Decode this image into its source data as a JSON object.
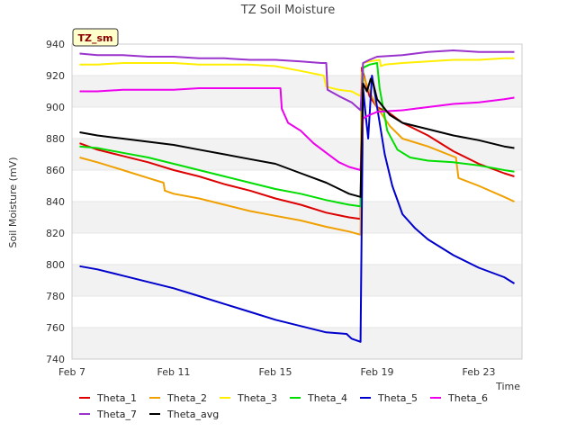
{
  "chart_data": {
    "type": "line",
    "title": "TZ Soil Moisture",
    "xlabel": "Time",
    "ylabel": "Soil Moisture (mV)",
    "badge": "TZ_sm",
    "xlim": [
      7,
      24.7
    ],
    "ylim": [
      740,
      940
    ],
    "xticks": [
      {
        "value": 7,
        "label": "Feb 7"
      },
      {
        "value": 11,
        "label": "Feb 11"
      },
      {
        "value": 15,
        "label": "Feb 15"
      },
      {
        "value": 19,
        "label": "Feb 19"
      },
      {
        "value": 23,
        "label": "Feb 23"
      }
    ],
    "yticks": [
      740,
      760,
      780,
      800,
      820,
      840,
      860,
      880,
      900,
      920,
      940
    ],
    "grid": true,
    "legend_position": "bottom",
    "series": [
      {
        "name": "Theta_1",
        "color": "#dd0000",
        "x": [
          7.3,
          8,
          9,
          10,
          11,
          12,
          13,
          14,
          15,
          16,
          17,
          17.9,
          18.35,
          18.4,
          18.7,
          19,
          19.5,
          20,
          21,
          22,
          23,
          24,
          24.4
        ],
        "y": [
          877,
          873,
          869,
          865,
          860,
          856,
          851,
          847,
          842,
          838,
          833,
          830,
          829,
          925,
          907,
          900,
          896,
          890,
          882,
          872,
          864,
          858,
          856
        ]
      },
      {
        "name": "Theta_2",
        "color": "#f0a000",
        "x": [
          7.3,
          8,
          9,
          10,
          10.6,
          10.65,
          11,
          12,
          13,
          14,
          15,
          16,
          17,
          17.9,
          18.35,
          18.4,
          18.7,
          19,
          19.5,
          20,
          21,
          22.1,
          22.2,
          23,
          24,
          24.4
        ],
        "y": [
          868,
          865,
          860,
          855,
          852,
          847,
          845,
          842,
          838,
          834,
          831,
          828,
          824,
          821,
          819,
          922,
          910,
          900,
          888,
          880,
          875,
          868,
          855,
          850,
          843,
          840
        ]
      },
      {
        "name": "Theta_3",
        "color": "#ffee00",
        "x": [
          7.3,
          8,
          9,
          10,
          11,
          12,
          13,
          14,
          15,
          16,
          16.9,
          17,
          17.5,
          18,
          18.35,
          18.45,
          18.7,
          19.1,
          19.15,
          19.3,
          20,
          21,
          22,
          23,
          24,
          24.4
        ],
        "y": [
          927,
          927,
          928,
          928,
          928,
          927,
          927,
          927,
          926,
          923,
          920,
          913,
          911,
          910,
          907,
          928,
          929,
          930,
          926,
          927,
          928,
          929,
          930,
          930,
          931,
          931
        ]
      },
      {
        "name": "Theta_4",
        "color": "#00dd00",
        "x": [
          7.3,
          8,
          9,
          10,
          11,
          12,
          13,
          14,
          15,
          16,
          17,
          17.9,
          18.35,
          18.45,
          18.7,
          19,
          19.1,
          19.4,
          19.8,
          20.3,
          21,
          22,
          23,
          24,
          24.4
        ],
        "y": [
          875,
          874,
          871,
          868,
          864,
          860,
          856,
          852,
          848,
          845,
          841,
          838,
          837,
          925,
          927,
          928,
          912,
          885,
          873,
          868,
          866,
          865,
          863,
          860,
          859
        ]
      },
      {
        "name": "Theta_5",
        "color": "#0000cc",
        "x": [
          7.3,
          8,
          9,
          10,
          11,
          12,
          13,
          14,
          15,
          16,
          17,
          17.8,
          18.0,
          18.35,
          18.45,
          18.55,
          18.65,
          18.8,
          18.9,
          19.0,
          19.3,
          19.6,
          20,
          20.5,
          21,
          22,
          23,
          24,
          24.4
        ],
        "y": [
          799,
          797,
          793,
          789,
          785,
          780,
          775,
          770,
          765,
          761,
          757,
          756,
          753,
          751,
          912,
          895,
          880,
          920,
          910,
          900,
          870,
          850,
          832,
          823,
          816,
          806,
          798,
          792,
          788
        ]
      },
      {
        "name": "Theta_6",
        "color": "#ee00ee",
        "x": [
          7.3,
          8,
          9,
          10,
          11,
          12,
          13,
          14,
          15,
          15.2,
          15.25,
          15.5,
          16,
          16.5,
          17,
          17.5,
          17.9,
          18.35,
          18.45,
          18.7,
          19,
          20,
          21,
          22,
          23,
          24,
          24.4
        ],
        "y": [
          910,
          910,
          911,
          911,
          911,
          912,
          912,
          912,
          912,
          912,
          899,
          890,
          885,
          877,
          871,
          865,
          862,
          860,
          893,
          895,
          897,
          898,
          900,
          902,
          903,
          905,
          906
        ]
      },
      {
        "name": "Theta_7",
        "color": "#9933cc",
        "x": [
          7.3,
          8,
          9,
          10,
          11,
          12,
          13,
          14,
          15,
          16,
          16.8,
          17.0,
          17.05,
          17.5,
          18,
          18.35,
          18.45,
          18.7,
          19,
          20,
          21,
          22,
          23,
          24,
          24.4
        ],
        "y": [
          934,
          933,
          933,
          932,
          932,
          931,
          931,
          930,
          930,
          929,
          928,
          928,
          911,
          907,
          903,
          898,
          928,
          930,
          932,
          933,
          935,
          936,
          935,
          935,
          935
        ]
      },
      {
        "name": "Theta_avg",
        "color": "#000000",
        "x": [
          7.3,
          8,
          9,
          10,
          11,
          12,
          13,
          14,
          15,
          16,
          17,
          17.9,
          18.35,
          18.45,
          18.6,
          18.75,
          18.85,
          19.0,
          19.5,
          20,
          21,
          22,
          23,
          24,
          24.4
        ],
        "y": [
          884,
          882,
          880,
          878,
          876,
          873,
          870,
          867,
          864,
          858,
          852,
          845,
          843,
          915,
          910,
          918,
          915,
          905,
          895,
          890,
          886,
          882,
          879,
          875,
          874
        ]
      }
    ]
  }
}
